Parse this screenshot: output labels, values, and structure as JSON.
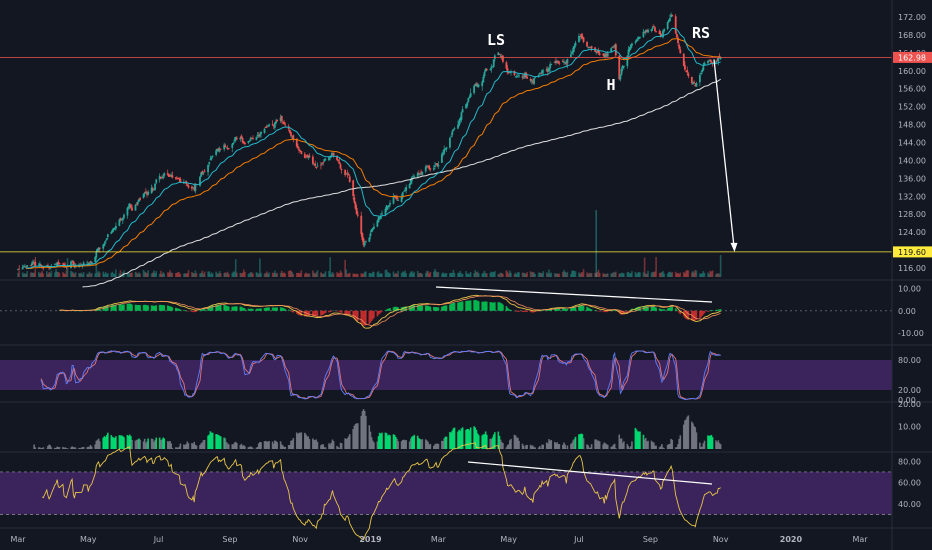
{
  "chart_data": [
    {
      "type": "candlestick",
      "title": "",
      "ylim": [
        114,
        174
      ],
      "y_ticks": [
        "116.00",
        "120.00",
        "124.00",
        "128.00",
        "132.00",
        "136.00",
        "140.00",
        "144.00",
        "148.00",
        "152.00",
        "156.00",
        "160.00",
        "164.00",
        "168.00",
        "172.00"
      ],
      "anchors": {
        "dates": [
          "2018-03-01",
          "2018-04-01",
          "2018-05-01",
          "2018-05-15",
          "2018-06-01",
          "2018-07-01",
          "2018-08-01",
          "2018-08-15",
          "2018-09-01",
          "2018-10-01",
          "2018-10-15",
          "2018-11-01",
          "2018-11-15",
          "2018-12-01",
          "2018-12-15",
          "2018-12-26",
          "2019-01-15",
          "2019-02-01",
          "2019-03-01",
          "2019-03-15",
          "2019-04-01",
          "2019-04-22",
          "2019-05-01",
          "2019-05-20",
          "2019-06-01",
          "2019-06-20",
          "2019-07-01",
          "2019-07-15",
          "2019-08-01",
          "2019-08-05",
          "2019-08-15",
          "2019-09-01",
          "2019-09-10",
          "2019-09-20",
          "2019-10-01",
          "2019-10-10",
          "2019-10-20",
          "2019-11-01"
        ],
        "close": [
          116,
          116.5,
          117,
          121,
          128,
          136,
          134,
          140,
          144,
          146,
          149,
          143,
          138,
          141,
          135,
          121,
          130,
          134,
          140,
          148,
          156,
          164,
          160,
          158,
          160,
          162,
          168,
          163,
          165,
          158,
          166,
          170,
          167,
          172,
          160,
          156,
          162,
          162.98
        ]
      },
      "horizontal_lines": [
        {
          "value": 162.98,
          "label": "162.98",
          "color": "#ef5350"
        },
        {
          "value": 119.6,
          "label": "119.60",
          "color": "#ffeb3b"
        }
      ],
      "annotations": [
        "LS",
        "H",
        "RS"
      ],
      "overlays": [
        "EMA 20",
        "EMA 50",
        "SMA 200",
        "Volume"
      ]
    },
    {
      "type": "histogram",
      "name": "MACD",
      "ylim": [
        -14,
        12
      ],
      "y_ticks": [
        "-10.00",
        "0.00",
        "10.00"
      ]
    },
    {
      "type": "line",
      "name": "Stochastic",
      "ylim": [
        0,
        100
      ],
      "y_ticks": [
        "0.00",
        "20.00",
        "80.00"
      ],
      "band": [
        20,
        80
      ]
    },
    {
      "type": "bar",
      "name": "Momentum",
      "ylim": [
        0,
        20
      ],
      "y_ticks": [
        "10.00",
        "20.00"
      ]
    },
    {
      "type": "line",
      "name": "RSI",
      "ylim": [
        20,
        85
      ],
      "y_ticks": [
        "40.00",
        "60.00",
        "80.00"
      ],
      "band": [
        30,
        70
      ]
    }
  ],
  "x_axis": {
    "labels": [
      "Mar",
      "May",
      "Jul",
      "Sep",
      "Nov",
      "2019",
      "Mar",
      "May",
      "Jul",
      "Sep",
      "Nov",
      "2020",
      "Mar"
    ]
  },
  "colors": {
    "background": "#131722",
    "up": "#26a69a",
    "down": "#ef5350",
    "ema_fast": "#22b8c9",
    "ema_slow": "#f57c00",
    "sma_long": "#e0e0e0",
    "axis_text": "#b2b5be",
    "grid": "#2a2e39",
    "band_fill": "#4a2a6f",
    "osc_yellow": "#e8c547",
    "stoch_red": "#e57373",
    "stoch_blue": "#5c7cfa",
    "mom_green": "#00e676",
    "mom_gray": "#787b86"
  }
}
